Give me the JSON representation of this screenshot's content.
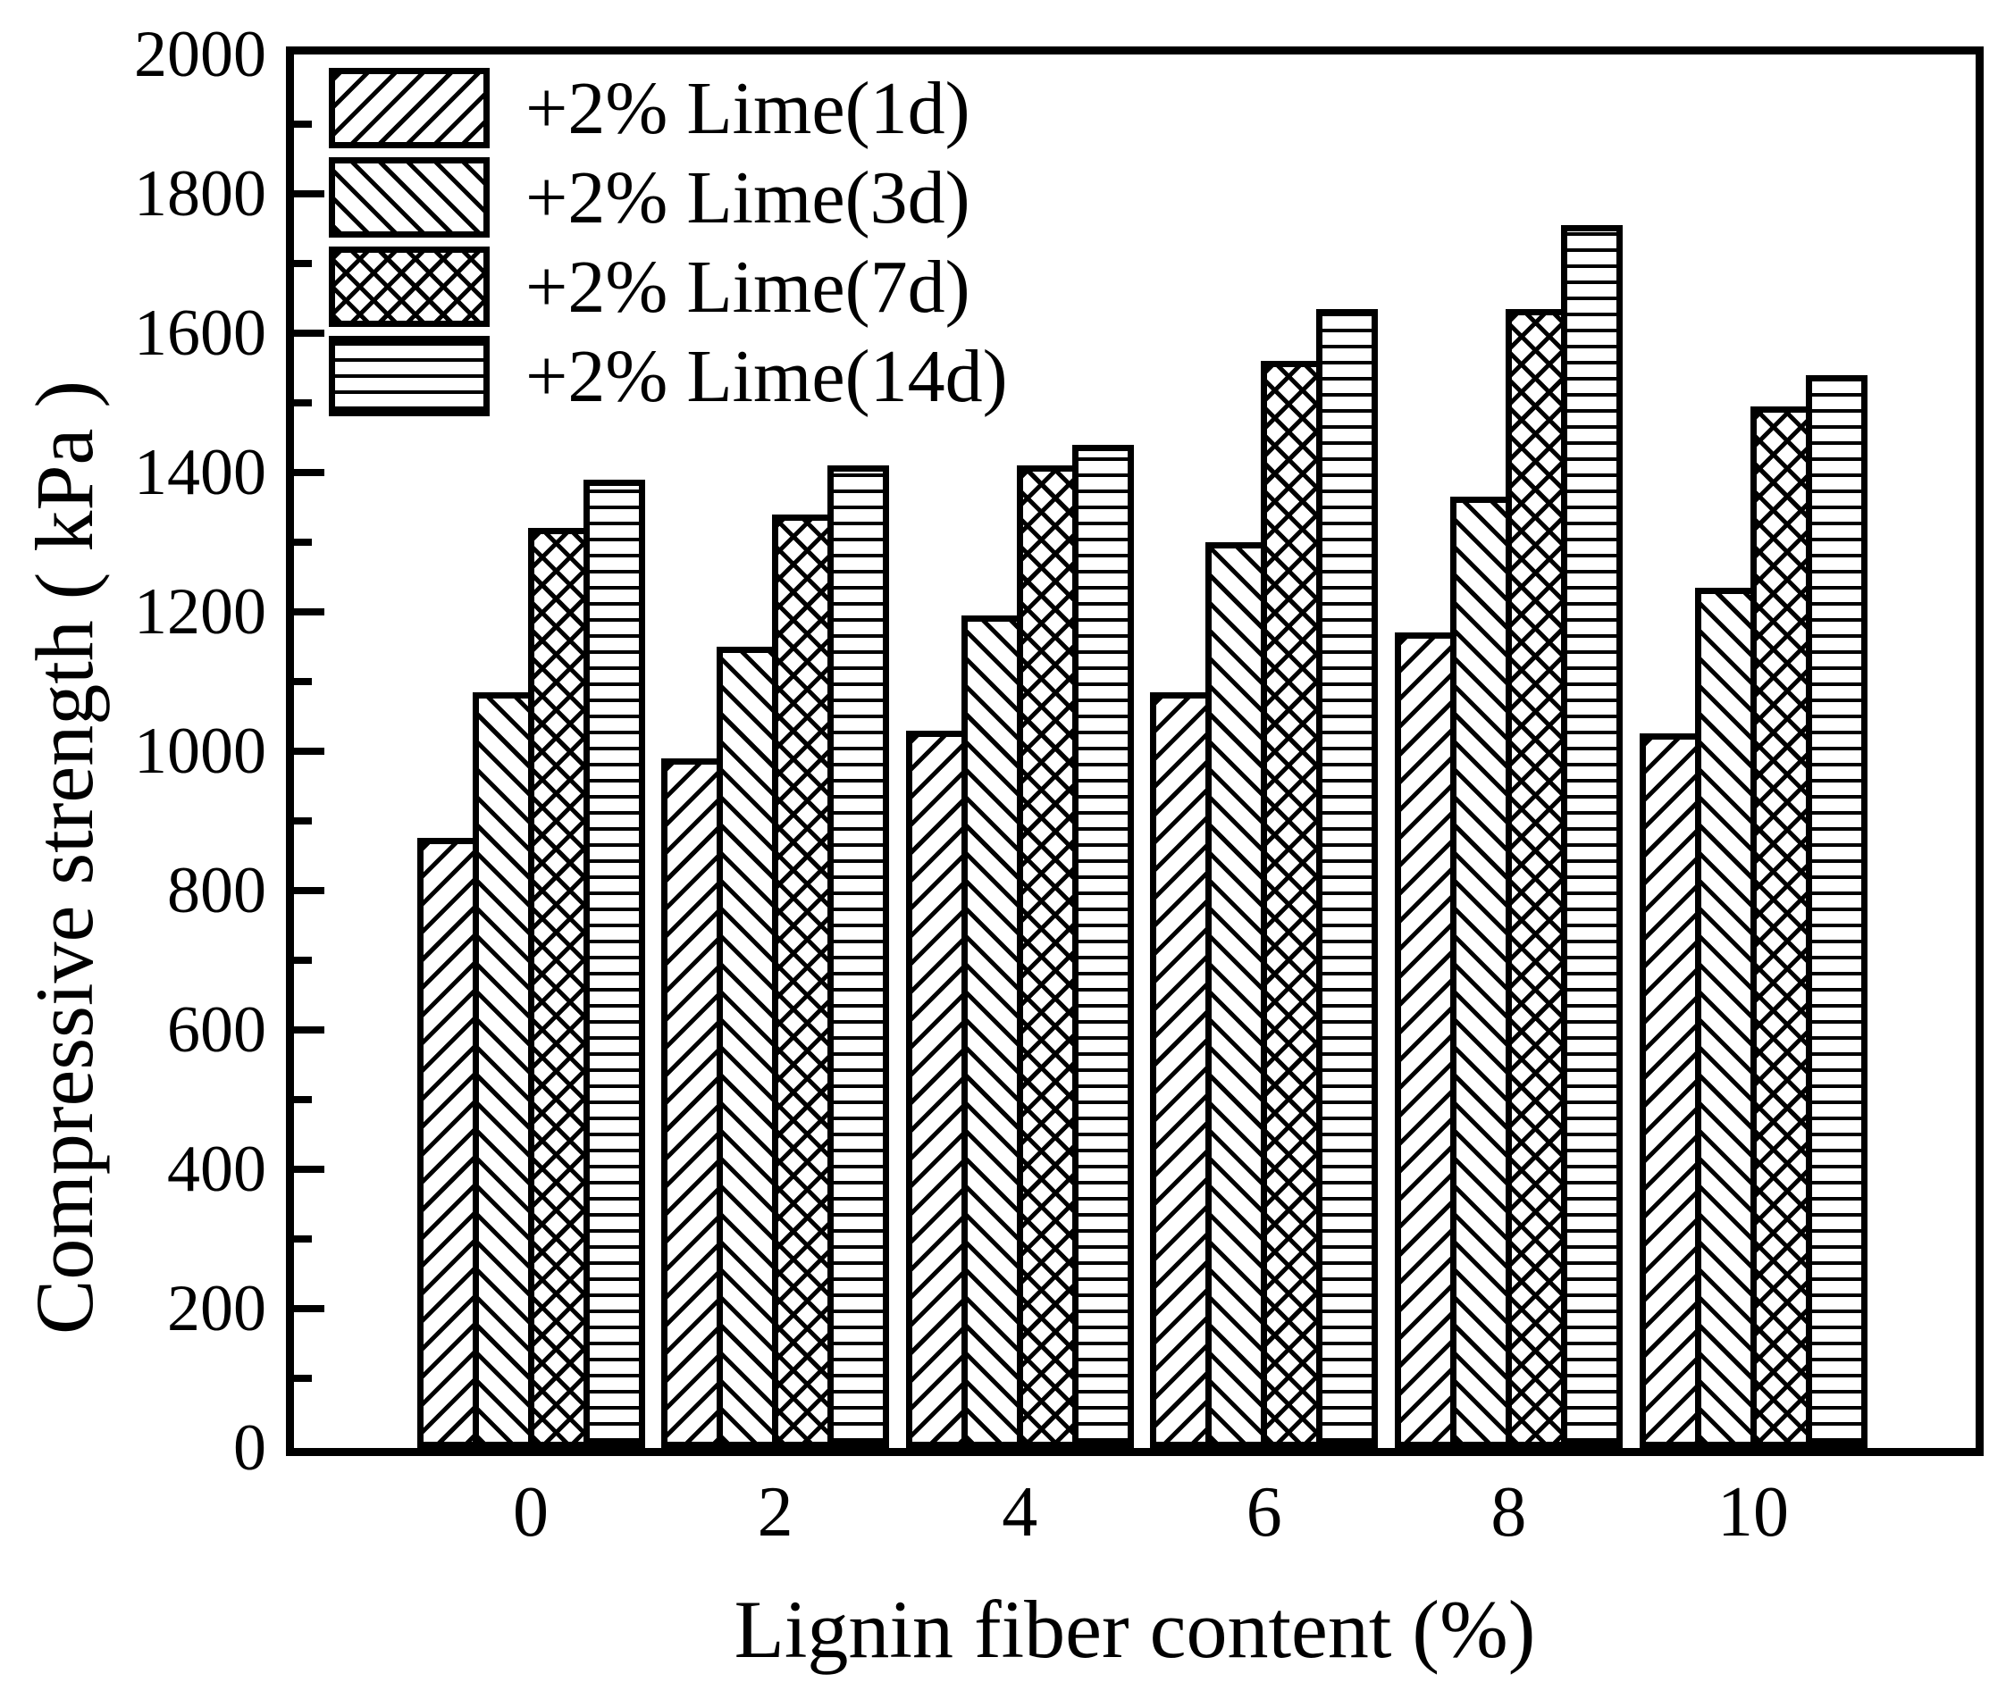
{
  "chart_data": {
    "type": "bar",
    "title": "",
    "xlabel": "Lignin fiber content (%)",
    "ylabel": "Compressive strength ( kPa )",
    "categories": [
      "0",
      "2",
      "4",
      "6",
      "8",
      "10"
    ],
    "series": [
      {
        "name": "+2% Lime(1d)",
        "pattern": "diagonal-forward",
        "values": [
          875,
          990,
          1030,
          1085,
          1170,
          1025
        ]
      },
      {
        "name": "+2% Lime(3d)",
        "pattern": "diagonal-backward",
        "values": [
          1085,
          1150,
          1195,
          1300,
          1365,
          1235
        ]
      },
      {
        "name": "+2% Lime(7d)",
        "pattern": "crosshatch",
        "values": [
          1320,
          1340,
          1410,
          1560,
          1635,
          1495
        ]
      },
      {
        "name": "+2% Lime(14d)",
        "pattern": "horizontal-lines",
        "values": [
          1390,
          1410,
          1440,
          1635,
          1755,
          1540
        ]
      }
    ],
    "ylim": [
      0,
      2000
    ],
    "ytick_step": 200,
    "yminor_step": 100,
    "yticks": [
      0,
      200,
      400,
      600,
      800,
      1000,
      1200,
      1400,
      1600,
      1800,
      2000
    ],
    "legend_position": "upper-left",
    "grid": false,
    "colors": {
      "foreground": "#000000",
      "background": "#ffffff"
    }
  }
}
